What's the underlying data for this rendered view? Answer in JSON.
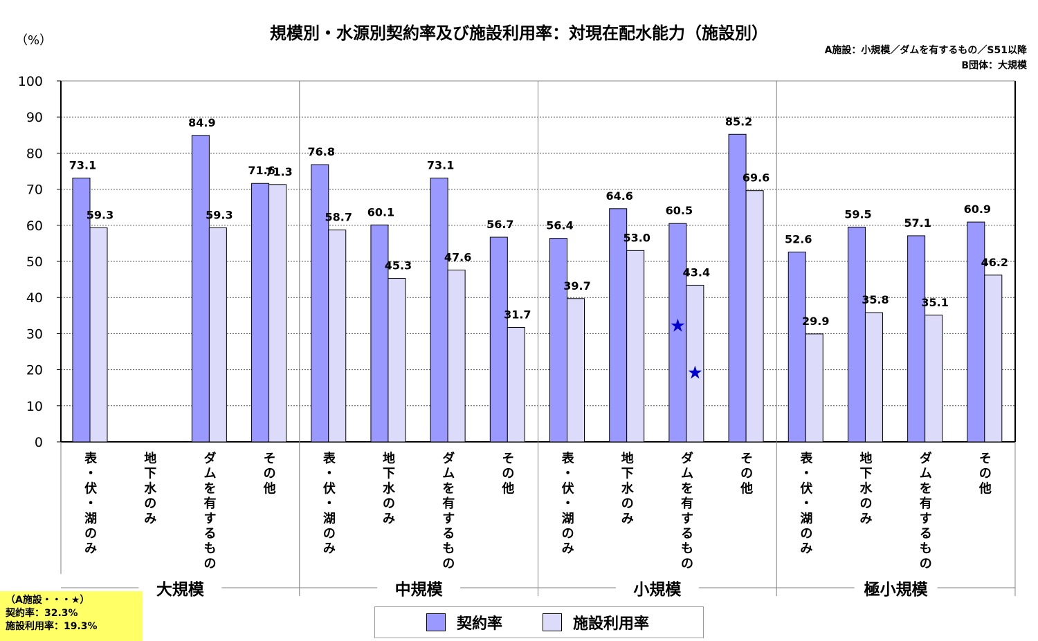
{
  "title": "規模別・水源別契約率及び施設利用率：対現在配水能力（施設別）",
  "unit": "（%）",
  "notes": [
    "A施設：小規模／ダムを有するもの／S51以降",
    "B団体：大規模"
  ],
  "callout": {
    "title": "（A施設・・・★）",
    "contract_rate": "契約率：32.3%",
    "facility_rate": "施設利用率：19.3%"
  },
  "colors": {
    "contract": "#9999ff",
    "facility": "#dcdcfa"
  },
  "chart_data": {
    "type": "bar",
    "ylim": [
      0,
      100
    ],
    "yticks": [
      0,
      10,
      20,
      30,
      40,
      50,
      60,
      70,
      80,
      90,
      100
    ],
    "groups": [
      "大規模",
      "中規模",
      "小規模",
      "極小規模"
    ],
    "categories": [
      "表・伏・湖のみ",
      "地下水のみ",
      "ダムを有するもの",
      "その他",
      "表・伏・湖のみ",
      "地下水のみ",
      "ダムを有するもの",
      "その他",
      "表・伏・湖のみ",
      "地下水のみ",
      "ダムを有するもの",
      "その他",
      "表・伏・湖のみ",
      "地下水のみ",
      "ダムを有するもの",
      "その他"
    ],
    "series": [
      {
        "name": "契約率",
        "values": [
          73.1,
          null,
          84.9,
          71.6,
          76.8,
          60.1,
          73.1,
          56.7,
          56.4,
          64.6,
          60.5,
          85.2,
          52.6,
          59.5,
          57.1,
          60.9
        ]
      },
      {
        "name": "施設利用率",
        "values": [
          59.3,
          null,
          59.3,
          71.3,
          58.7,
          45.3,
          47.6,
          31.7,
          39.7,
          53.0,
          43.4,
          69.6,
          29.9,
          35.8,
          35.1,
          46.2
        ]
      }
    ],
    "markers": [
      {
        "category_index": 10,
        "series": 0,
        "value": 32.3,
        "symbol": "★"
      },
      {
        "category_index": 10,
        "series": 1,
        "value": 19.3,
        "symbol": "★"
      }
    ],
    "grid": true,
    "legend": "bottom"
  }
}
